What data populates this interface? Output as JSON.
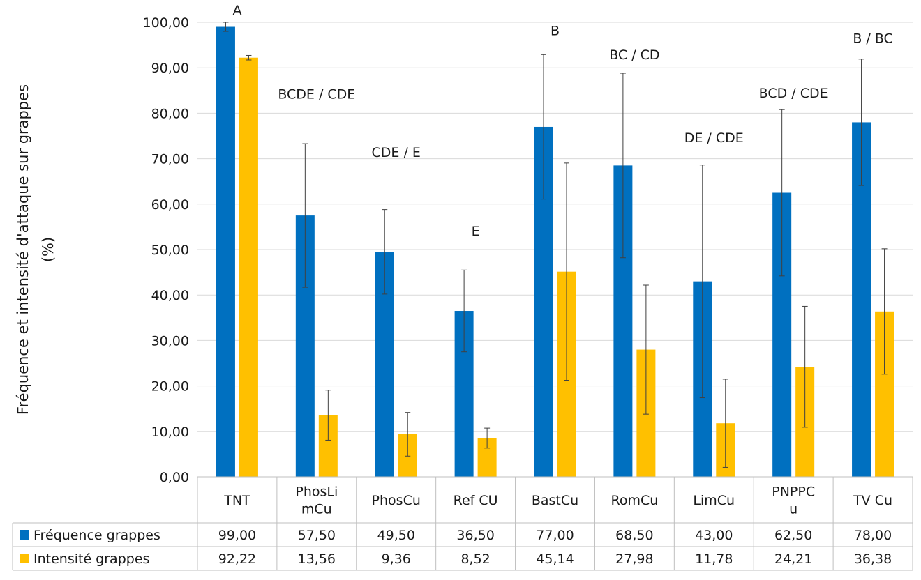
{
  "chart_data": {
    "type": "bar",
    "ylabel_lines": [
      "Fréquence et intensité d'attaque sur grappes",
      "(%)"
    ],
    "ylim": [
      0,
      100
    ],
    "yticks": [
      "0,00",
      "10,00",
      "20,00",
      "30,00",
      "40,00",
      "50,00",
      "60,00",
      "70,00",
      "80,00",
      "90,00",
      "100,00"
    ],
    "grid": true,
    "categories": [
      {
        "lines": [
          "TNT"
        ]
      },
      {
        "lines": [
          "PhosLi",
          "mCu"
        ]
      },
      {
        "lines": [
          "PhosCu"
        ]
      },
      {
        "lines": [
          "Ref CU"
        ]
      },
      {
        "lines": [
          "BastCu"
        ]
      },
      {
        "lines": [
          "RomCu"
        ]
      },
      {
        "lines": [
          "LimCu"
        ]
      },
      {
        "lines": [
          "PNPPC",
          "u"
        ]
      },
      {
        "lines": [
          "TV Cu"
        ]
      }
    ],
    "series": [
      {
        "name": "Fréquence grappes",
        "color": "#0070C0",
        "values": [
          99.0,
          57.5,
          49.5,
          36.5,
          77.0,
          68.5,
          43.0,
          62.5,
          78.0
        ],
        "labels": [
          "99,00",
          "57,50",
          "49,50",
          "36,50",
          "77,00",
          "68,50",
          "43,00",
          "62,50",
          "78,00"
        ],
        "error": [
          1.0,
          15.8,
          9.3,
          9.0,
          15.9,
          20.3,
          25.6,
          18.3,
          13.9
        ]
      },
      {
        "name": "Intensité grappes",
        "color": "#FFC000",
        "values": [
          92.22,
          13.56,
          9.36,
          8.52,
          45.14,
          27.98,
          11.78,
          24.21,
          36.38
        ],
        "labels": [
          "92,22",
          "13,56",
          "9,36",
          "8,52",
          "45,14",
          "27,98",
          "11,78",
          "24,21",
          "36,38"
        ],
        "error": [
          0.5,
          5.5,
          4.8,
          2.2,
          23.9,
          14.2,
          9.7,
          13.3,
          13.8
        ]
      }
    ],
    "annotations": [
      {
        "text": "A",
        "category": 0,
        "y": 101.7
      },
      {
        "text": "BCDE / CDE",
        "category": 1,
        "y": 83.2
      },
      {
        "text": "CDE / E",
        "category": 2,
        "y": 70.4
      },
      {
        "text": "E",
        "category": 3,
        "y": 53.1
      },
      {
        "text": "B",
        "category": 4,
        "y": 97.2
      },
      {
        "text": "BC / CD",
        "category": 5,
        "y": 91.9
      },
      {
        "text": "DE / CDE",
        "category": 6,
        "y": 73.6
      },
      {
        "text": "BCD / CDE",
        "category": 7,
        "y": 83.4
      },
      {
        "text": "B / BC",
        "category": 8,
        "y": 95.5
      }
    ]
  }
}
